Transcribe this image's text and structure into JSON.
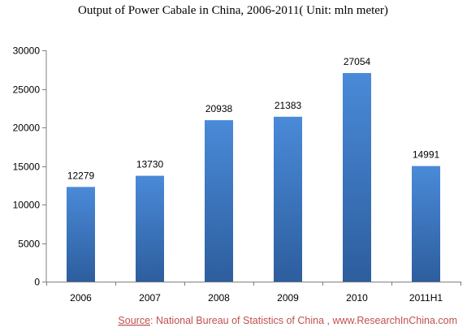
{
  "chart_data": {
    "type": "bar",
    "title": "Output of Power Cabale in China, 2006-2011( Unit: mln meter)",
    "categories": [
      "2006",
      "2007",
      "2008",
      "2009",
      "2010",
      "2011H1"
    ],
    "series": [
      {
        "values": [
          12279,
          13730,
          20938,
          21383,
          27054,
          14991
        ]
      }
    ],
    "data_labels": [
      "12279",
      "13730",
      "20938",
      "21383",
      "27054",
      "14991"
    ],
    "ylim": [
      0,
      30000
    ],
    "yticks": [
      "0",
      "5000",
      "10000",
      "15000",
      "20000",
      "25000",
      "30000"
    ],
    "xlabel": "",
    "ylabel": "",
    "grid": false,
    "legend": "none"
  },
  "source": {
    "label": "Source",
    "text": ": National Bureau of Statistics of China , www.ResearchInChina.com"
  },
  "colors": {
    "bar_top": "#4a8ad8",
    "bar_bottom": "#2d5e9e",
    "source_text": "#c0504d",
    "axis": "#7f7f7f"
  }
}
